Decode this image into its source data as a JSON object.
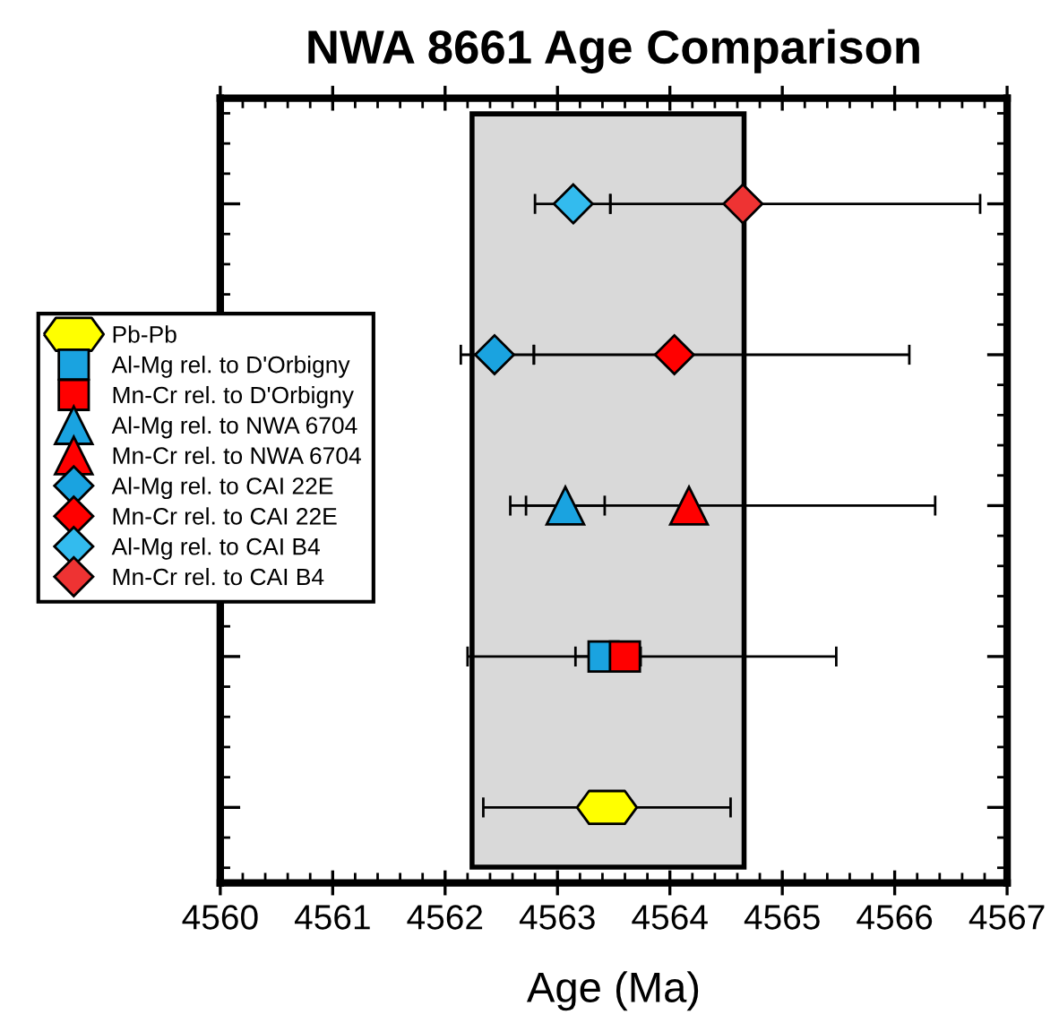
{
  "chart_data": {
    "type": "scatter",
    "orientation": "horizontal",
    "title": "NWA 8661 Age Comparison",
    "xlabel": "Age (Ma)",
    "categories": [
      null,
      null,
      null,
      null,
      null
    ],
    "xlim": [
      4560,
      4567
    ],
    "xticks": [
      4560,
      4561,
      4562,
      4563,
      4564,
      4565,
      4566,
      4567
    ],
    "bands": [
      {
        "axis": "x",
        "from": 4562.24,
        "to": 4564.66,
        "color": "#d9d9d9"
      }
    ],
    "legend": "left",
    "grid": false,
    "series": [
      {
        "name": "Pb-Pb",
        "color": "#ffff00",
        "values": [
          null,
          null,
          null,
          null,
          4563.44
        ],
        "errors": [
          null,
          null,
          null,
          null,
          [
            4562.34,
            4564.54
          ]
        ]
      },
      {
        "name": "Al-Mg rel. to D'Orbigny",
        "color": "#1aa3e0",
        "marker": "square",
        "values": [
          null,
          null,
          null,
          4563.41,
          null
        ],
        "errors": [
          null,
          null,
          null,
          [
            4563.16,
            4563.74
          ],
          null
        ]
      },
      {
        "name": "Mn-Cr rel. to D'Orbigny",
        "color": "#ff0000",
        "marker": "square",
        "values": [
          null,
          null,
          null,
          4563.6,
          null
        ],
        "errors": [
          null,
          null,
          null,
          [
            4562.2,
            4565.48
          ],
          null
        ]
      },
      {
        "name": "Al-Mg rel. to NWA 6704",
        "color": "#1aa3e0",
        "marker": "triangle",
        "values": [
          null,
          null,
          4563.07,
          null,
          null
        ],
        "errors": [
          null,
          null,
          [
            4562.72,
            4563.42
          ],
          null,
          null
        ]
      },
      {
        "name": "Mn-Cr rel. to NWA 6704",
        "color": "#ff0000",
        "marker": "triangle",
        "values": [
          null,
          null,
          4564.17,
          null,
          null
        ],
        "errors": [
          null,
          null,
          [
            4562.58,
            4566.36
          ],
          null,
          null
        ]
      },
      {
        "name": "Al-Mg rel. to CAI 22E",
        "color": "#1aa3e0",
        "marker": "diamond",
        "values": [
          null,
          4562.44,
          null,
          null,
          null
        ],
        "errors": [
          null,
          [
            4562.14,
            4562.79
          ],
          null,
          null,
          null
        ]
      },
      {
        "name": "Mn-Cr rel. to CAI 22E",
        "color": "#ff0000",
        "marker": "diamond",
        "values": [
          null,
          4564.04,
          null,
          null,
          null
        ],
        "errors": [
          null,
          [
            4562.79,
            4566.13
          ],
          null,
          null,
          null
        ]
      },
      {
        "name": "Al-Mg rel. to CAI B4",
        "color": "#33bbee",
        "marker": "diamond",
        "values": [
          4563.14,
          null,
          null,
          null,
          null
        ],
        "errors": [
          [
            4562.8,
            4563.47
          ],
          null,
          null,
          null,
          null
        ]
      },
      {
        "name": "Mn-Cr rel. to CAI B4",
        "color": "#ee3333",
        "marker": "diamond",
        "values": [
          4564.65,
          null,
          null,
          null,
          null
        ],
        "errors": [
          [
            4563.47,
            4566.76
          ],
          null,
          null,
          null,
          null
        ]
      }
    ]
  }
}
